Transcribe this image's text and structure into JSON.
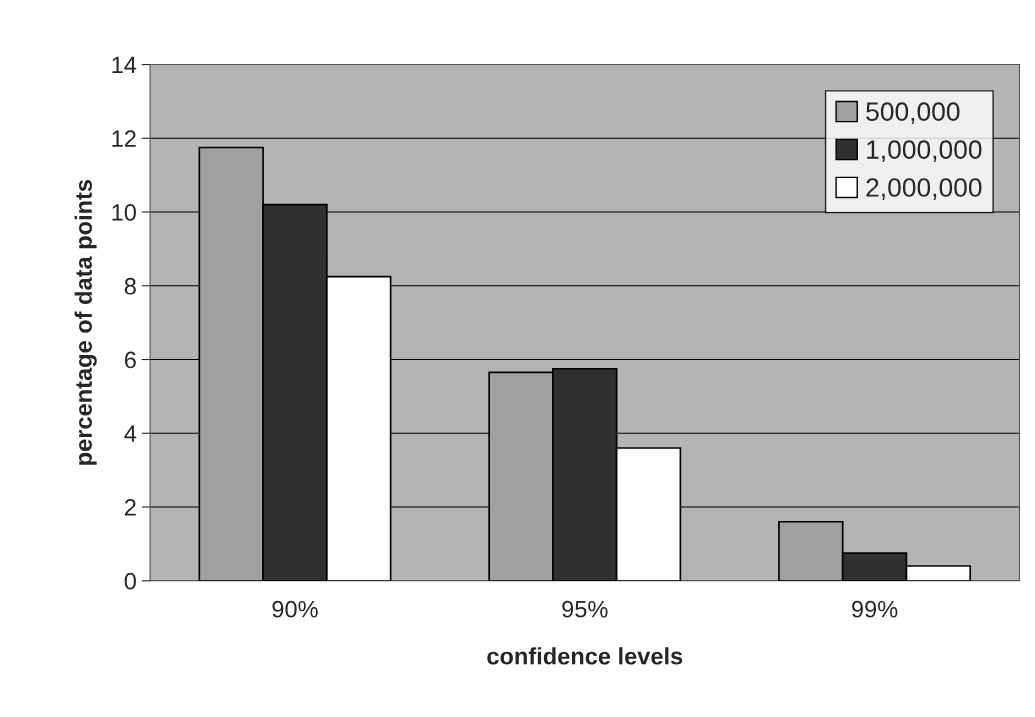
{
  "chart_data": {
    "type": "bar",
    "xlabel": "confidence levels",
    "ylabel": "percentage of data points",
    "categories": [
      "90%",
      "95%",
      "99%"
    ],
    "series": [
      {
        "name": "500,000",
        "color": "#a0a0a0",
        "values": [
          11.75,
          5.65,
          1.6
        ]
      },
      {
        "name": "1,000,000",
        "color": "#303030",
        "values": [
          10.2,
          5.75,
          0.75
        ]
      },
      {
        "name": "2,000,000",
        "color": "#ffffff",
        "values": [
          8.25,
          3.6,
          0.4
        ]
      }
    ],
    "ylim": [
      0,
      14
    ],
    "yticks": [
      0,
      2,
      4,
      6,
      8,
      10,
      12,
      14
    ],
    "grid": "y",
    "legend": "top right"
  }
}
